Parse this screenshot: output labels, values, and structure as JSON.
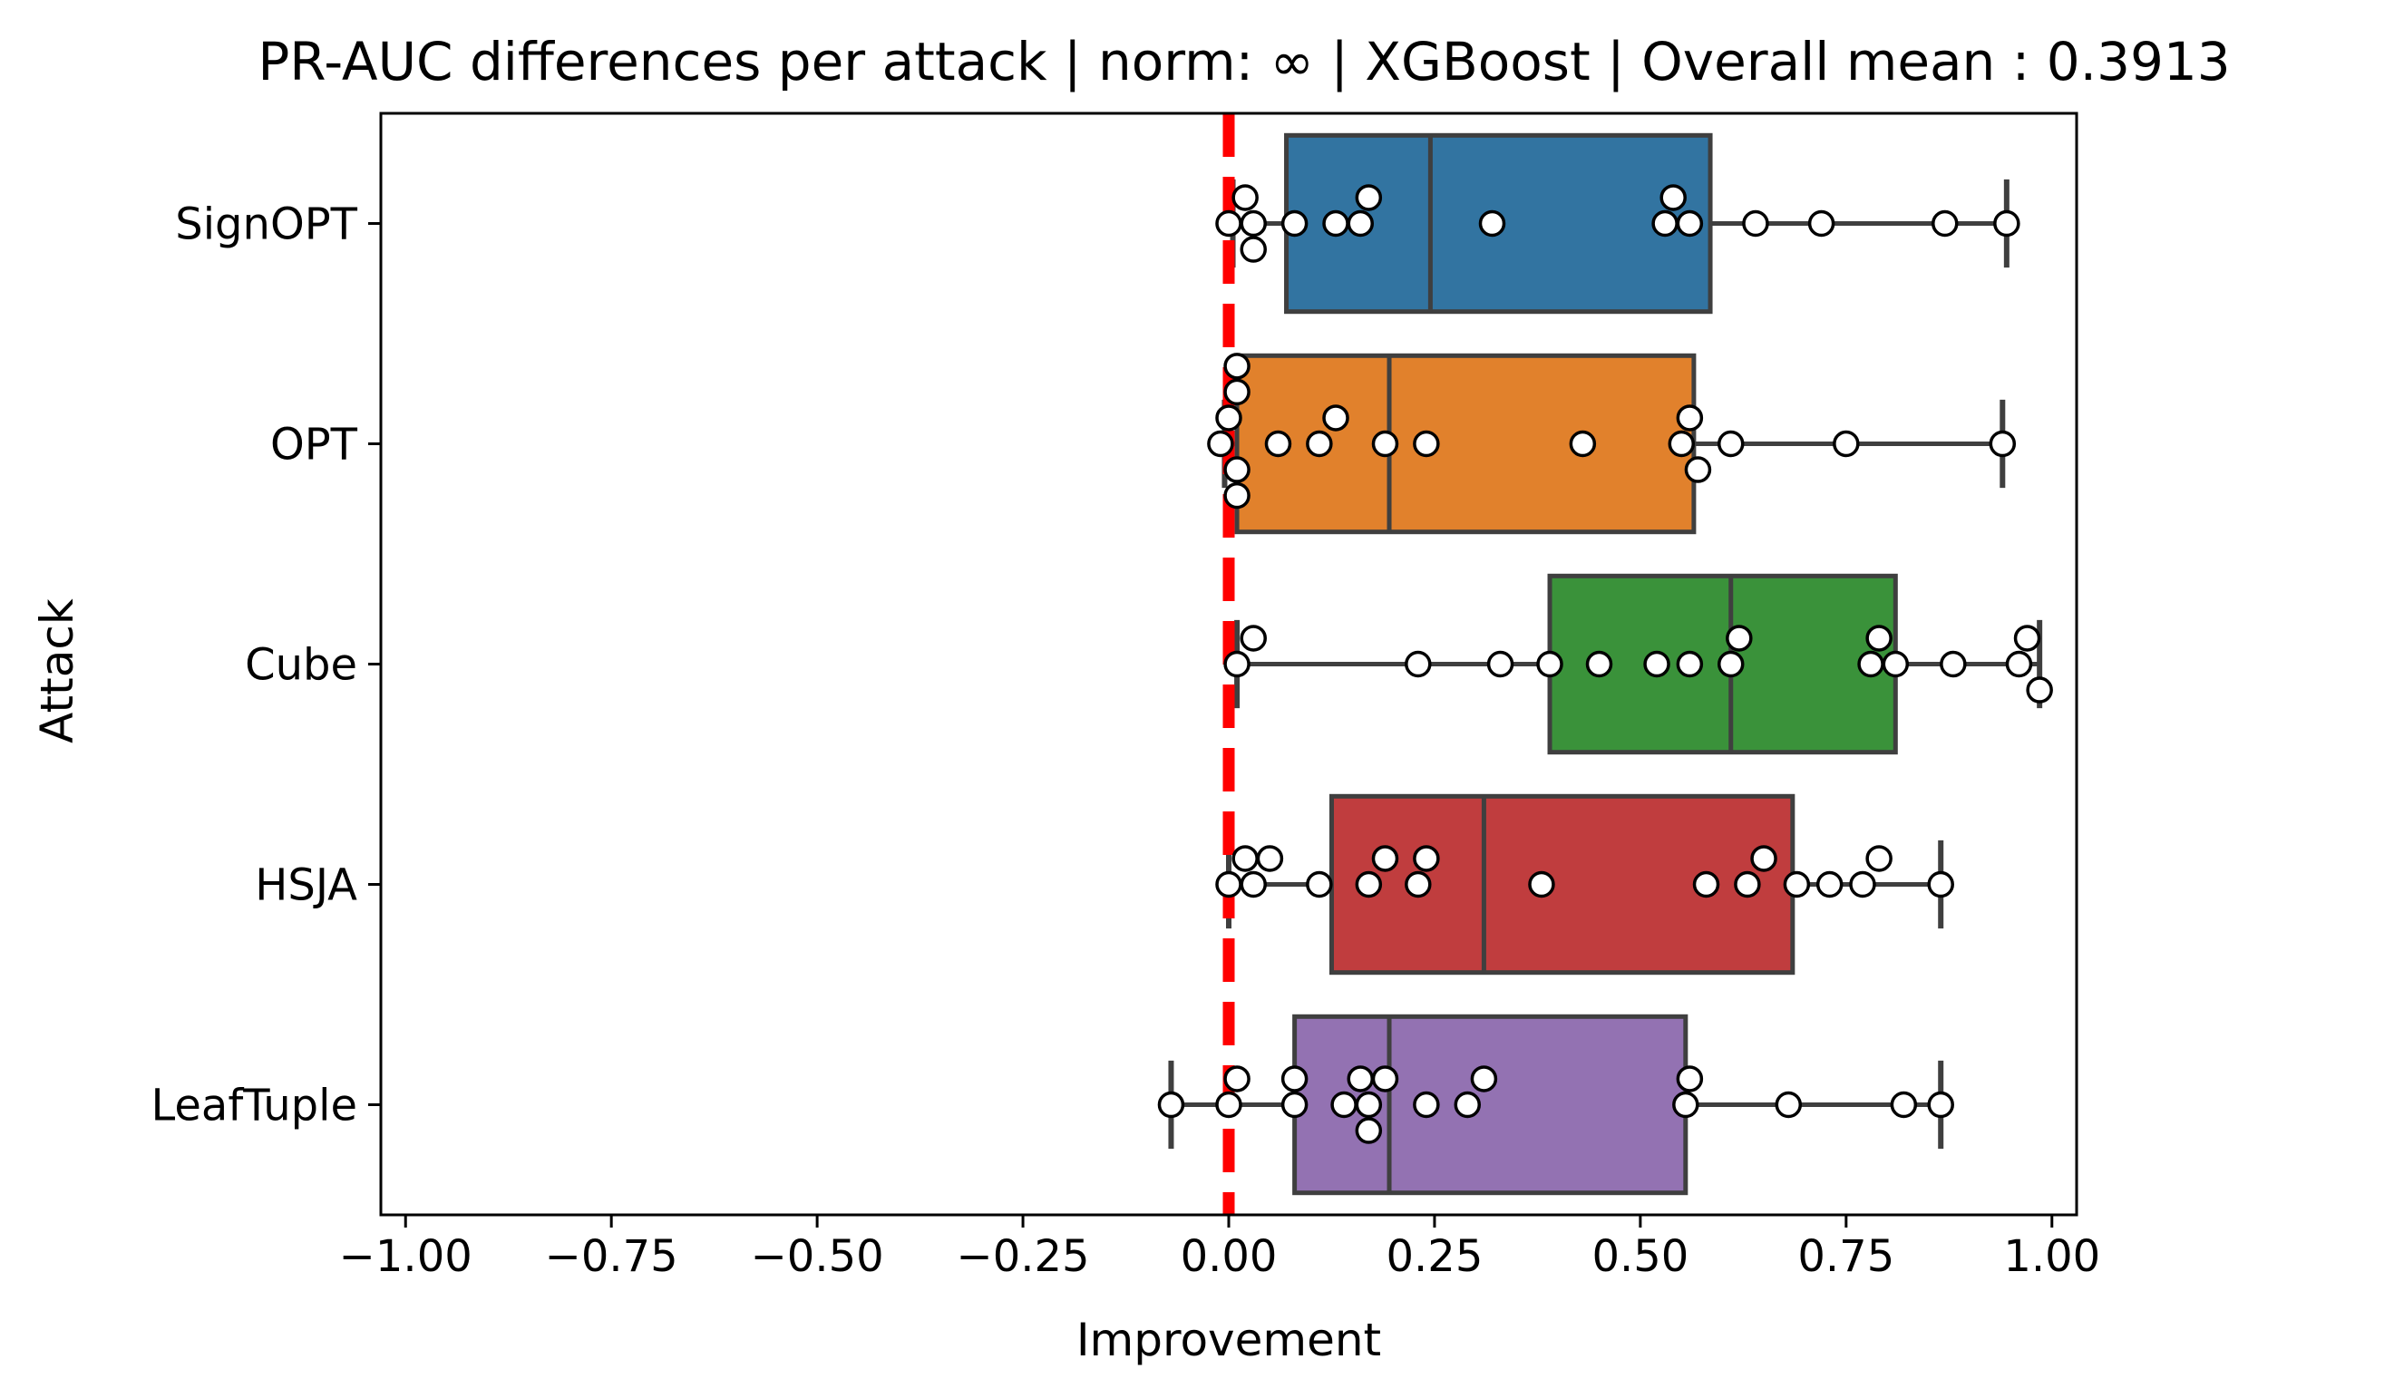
{
  "chart_data": {
    "type": "box",
    "title": "PR-AUC differences per attack | norm: ∞ | XGBoost | Overall mean : 0.3913",
    "xlabel": "Improvement",
    "ylabel": "Attack",
    "xlim": [
      -1.03,
      1.03
    ],
    "xticks": [
      -1.0,
      -0.75,
      -0.5,
      -0.25,
      0.0,
      0.25,
      0.5,
      0.75,
      1.0
    ],
    "xtick_labels": [
      "−1.00",
      "−0.75",
      "−0.50",
      "−0.25",
      "0.00",
      "0.25",
      "0.50",
      "0.75",
      "1.00"
    ],
    "reference_line": {
      "x": 0.0,
      "color": "#ff0000",
      "style": "dashed"
    },
    "grid": false,
    "series": [
      {
        "name": "SignOPT",
        "color": "#3274a1",
        "box": {
          "whisker_low": 0.005,
          "q1": 0.07,
          "median": 0.245,
          "q3": 0.585,
          "whisker_high": 0.945
        },
        "points": [
          0.0,
          0.02,
          0.03,
          0.03,
          0.08,
          0.13,
          0.16,
          0.17,
          0.32,
          0.53,
          0.54,
          0.56,
          0.64,
          0.72,
          0.87,
          0.945
        ]
      },
      {
        "name": "OPT",
        "color": "#e1812c",
        "box": {
          "whisker_low": -0.005,
          "q1": 0.01,
          "median": 0.195,
          "q3": 0.565,
          "whisker_high": 0.94
        },
        "points": [
          -0.01,
          0.0,
          0.01,
          0.01,
          0.01,
          0.01,
          0.06,
          0.11,
          0.13,
          0.19,
          0.24,
          0.43,
          0.55,
          0.56,
          0.57,
          0.61,
          0.75,
          0.94
        ]
      },
      {
        "name": "Cube",
        "color": "#3a923a",
        "box": {
          "whisker_low": 0.01,
          "q1": 0.39,
          "median": 0.61,
          "q3": 0.81,
          "whisker_high": 0.985
        },
        "points": [
          0.01,
          0.03,
          0.23,
          0.33,
          0.39,
          0.45,
          0.52,
          0.56,
          0.61,
          0.62,
          0.78,
          0.79,
          0.81,
          0.88,
          0.96,
          0.97,
          0.985
        ]
      },
      {
        "name": "HSJA",
        "color": "#c03d3e",
        "box": {
          "whisker_low": 0.0,
          "q1": 0.125,
          "median": 0.31,
          "q3": 0.685,
          "whisker_high": 0.865
        },
        "points": [
          0.0,
          0.02,
          0.03,
          0.05,
          0.11,
          0.17,
          0.19,
          0.23,
          0.24,
          0.38,
          0.58,
          0.63,
          0.65,
          0.69,
          0.73,
          0.77,
          0.79,
          0.865
        ]
      },
      {
        "name": "LeafTuple",
        "color": "#9372b2",
        "box": {
          "whisker_low": -0.07,
          "q1": 0.08,
          "median": 0.195,
          "q3": 0.555,
          "whisker_high": 0.865
        },
        "points": [
          -0.07,
          0.0,
          0.01,
          0.08,
          0.08,
          0.14,
          0.16,
          0.17,
          0.17,
          0.19,
          0.24,
          0.29,
          0.31,
          0.555,
          0.56,
          0.68,
          0.82,
          0.865
        ]
      }
    ]
  }
}
